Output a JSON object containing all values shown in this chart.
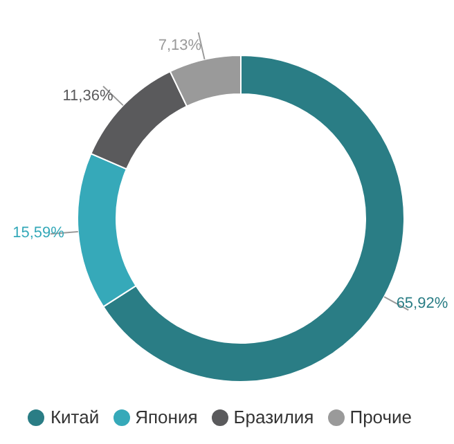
{
  "chart_data": {
    "type": "donut",
    "categories": [
      "Китай",
      "Япония",
      "Бразилия",
      "Прочие"
    ],
    "values": [
      65.92,
      15.59,
      11.36,
      7.13
    ],
    "colors": [
      "#2a7d85",
      "#36a9b9",
      "#5a5a5c",
      "#9a9a9a"
    ],
    "value_labels": [
      "65,92%",
      "15,59%",
      "11,36%",
      "7,13%"
    ],
    "legend": "bottom"
  }
}
